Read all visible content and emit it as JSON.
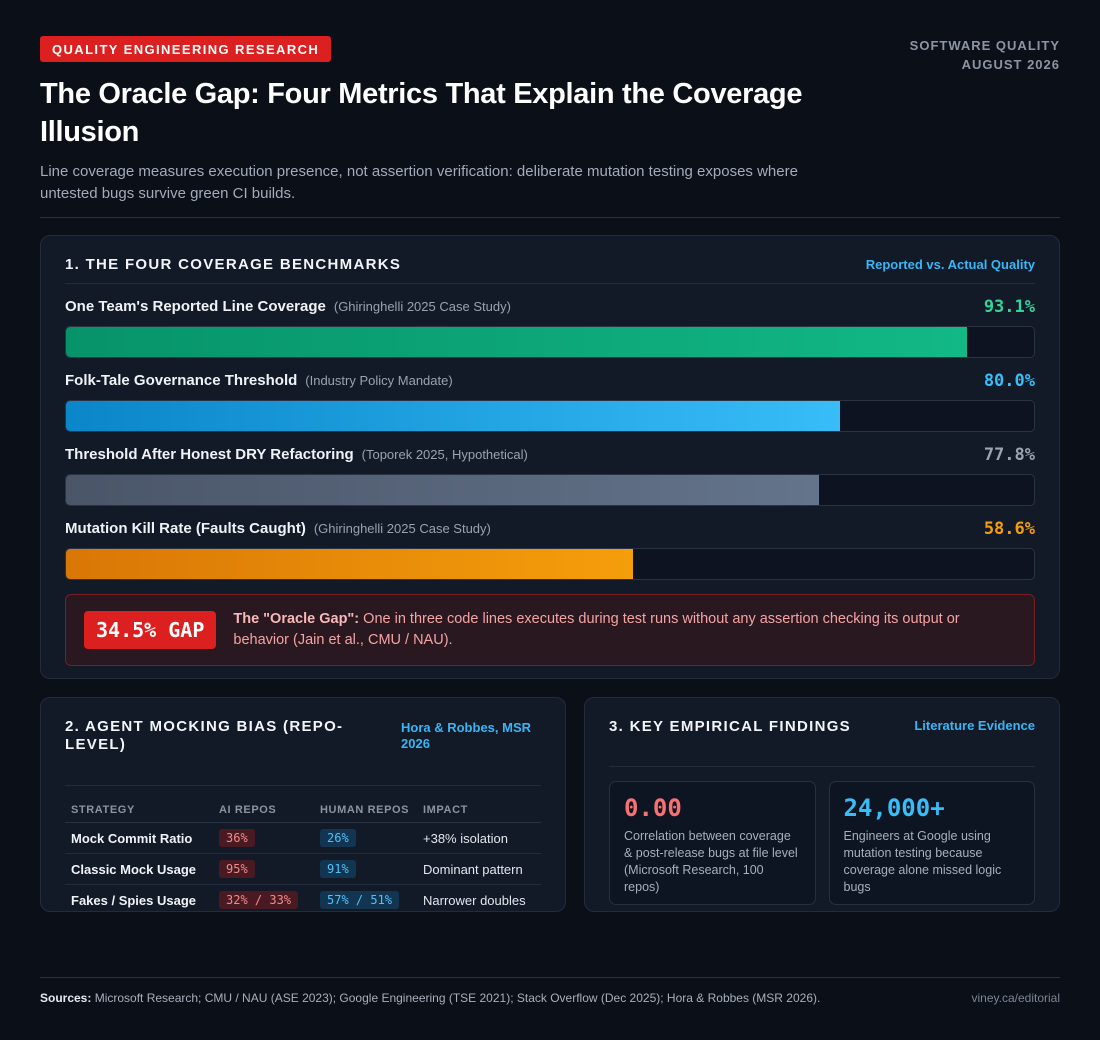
{
  "header": {
    "kicker": "QUALITY ENGINEERING RESEARCH",
    "meta_line1": "SOFTWARE QUALITY",
    "meta_line2": "AUGUST 2026",
    "title": "The Oracle Gap: Four Metrics That Explain the Coverage Illusion",
    "subtitle": "Line coverage measures execution presence, not assertion verification: deliberate mutation testing exposes where untested bugs survive green CI builds."
  },
  "benchmarks": {
    "title": "1. THE FOUR COVERAGE BENCHMARKS",
    "tag": "Reported vs. Actual Quality",
    "metrics": [
      {
        "name": "One Team's Reported Line Coverage",
        "source": "(Ghiringhelli 2025 Case Study)",
        "value_label": "93.1%",
        "value": 93.1,
        "color": "#12b886"
      },
      {
        "name": "Folk-Tale Governance Threshold",
        "source": "(Industry Policy Mandate)",
        "value_label": "80.0%",
        "value": 80.0,
        "color": "#38bdf8"
      },
      {
        "name": "Threshold After Honest DRY Refactoring",
        "source": "(Toporek 2025, Hypothetical)",
        "value_label": "77.8%",
        "value": 77.8,
        "color": "#64748b"
      },
      {
        "name": "Mutation Kill Rate (Faults Caught)",
        "source": "(Ghiringhelli 2025 Case Study)",
        "value_label": "58.6%",
        "value": 58.6,
        "color": "#f59e0b"
      }
    ],
    "gap": {
      "badge": "34.5% GAP",
      "lead": "The \"Oracle Gap\":",
      "text": " One in three code lines executes during test runs without any assertion checking its output or behavior (Jain et al., CMU / NAU)."
    }
  },
  "mocking": {
    "title": "2. AGENT MOCKING BIAS (REPO-LEVEL)",
    "tag": "Hora & Robbes, MSR 2026",
    "columns": [
      "STRATEGY",
      "AI REPOS",
      "HUMAN REPOS",
      "IMPACT"
    ],
    "rows": [
      {
        "strategy": "Mock Commit Ratio",
        "ai": "36%",
        "human": "26%",
        "impact": "+38% isolation"
      },
      {
        "strategy": "Classic Mock Usage",
        "ai": "95%",
        "human": "91%",
        "impact": "Dominant pattern"
      },
      {
        "strategy": "Fakes / Spies Usage",
        "ai": "32% / 33%",
        "human": "57% / 51%",
        "impact": "Narrower doubles"
      }
    ]
  },
  "findings": {
    "title": "3. KEY EMPIRICAL FINDINGS",
    "tag": "Literature Evidence",
    "cards": [
      {
        "value": "0.00",
        "desc": "Correlation between coverage & post-release bugs at file level (Microsoft Research, 100 repos)"
      },
      {
        "value": "24,000+",
        "desc": "Engineers at Google using mutation testing because coverage alone missed logic bugs"
      }
    ]
  },
  "footer": {
    "sources_label": "Sources:",
    "sources_text": " Microsoft Research; CMU / NAU (ASE 2023); Google Engineering (TSE 2021); Stack Overflow (Dec 2025); Hora & Robbes (MSR 2026).",
    "credit": "viney.ca/editorial"
  }
}
